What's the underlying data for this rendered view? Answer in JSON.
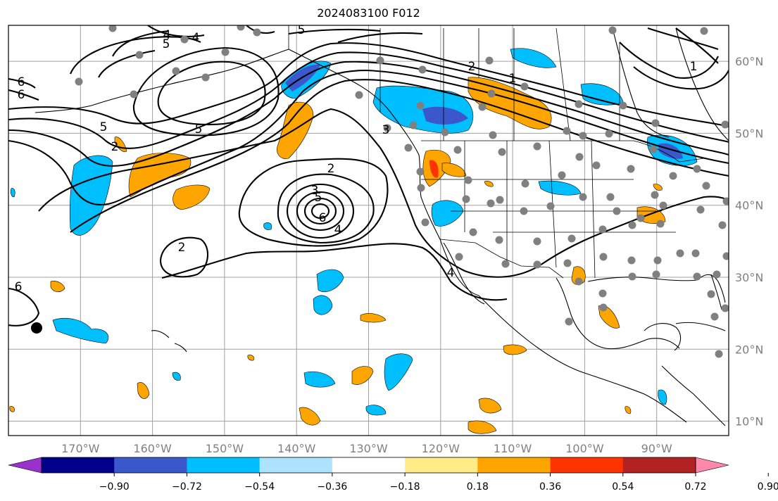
{
  "title": "2024083100 F012",
  "map": {
    "projection": "PlateCarree",
    "extent_lon": [
      -180,
      -80
    ],
    "extent_lat": [
      8,
      65
    ],
    "gridlines": true,
    "lat_labels": [
      "60°N",
      "50°N",
      "40°N",
      "30°N",
      "20°N",
      "10°N"
    ],
    "lon_labels": [
      "170°W",
      "160°W",
      "150°W",
      "140°W",
      "130°W",
      "120°W",
      "110°W",
      "100°W",
      "90°W"
    ],
    "contour_labels": [
      "6",
      "6",
      "5",
      "2",
      "3",
      "4",
      "5",
      "6",
      "5",
      "4",
      "2",
      "3",
      "2",
      "6",
      "4",
      "2",
      "1",
      "1",
      "5",
      "5",
      "4"
    ]
  },
  "colorbar": {
    "tick_labels": [
      "−0.90",
      "−0.72",
      "−0.54",
      "−0.36",
      "−0.18",
      "0.18",
      "0.36",
      "0.54",
      "0.72",
      "0.90"
    ],
    "colors": [
      "#9932cc",
      "#00008b",
      "#3a57cc",
      "#00bfff",
      "#aee3ff",
      "#ffffff",
      "#ffeb88",
      "#ffa500",
      "#ff3300",
      "#b22222",
      "#ff88aa"
    ],
    "extend": "both"
  },
  "shading_colors": {
    "blue_dark": "#3a57cc",
    "blue": "#00bfff",
    "orange": "#ffa500",
    "red": "#ff3300"
  },
  "station_marker_color": "#808080"
}
